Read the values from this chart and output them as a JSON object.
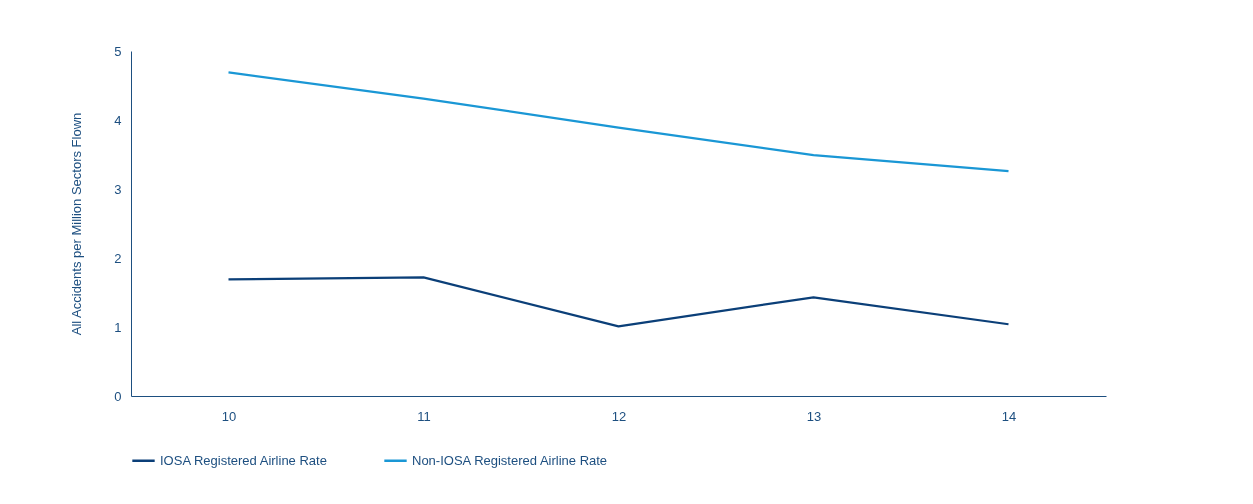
{
  "chart_data": {
    "type": "line",
    "ylabel": "All Accidents per Million Sectors Flown",
    "categories": [
      "10",
      "11",
      "12",
      "13",
      "14"
    ],
    "series": [
      {
        "name": "IOSA Registered Airline Rate",
        "color": "#0b3f78",
        "values": [
          1.69,
          1.72,
          1.01,
          1.43,
          1.04
        ]
      },
      {
        "name": "Non-IOSA Registered Airline Rate",
        "color": "#1a97d5",
        "values": [
          4.69,
          4.31,
          3.89,
          3.49,
          3.26
        ]
      }
    ],
    "ylim": [
      0,
      5
    ],
    "yticks": [
      0,
      1,
      2,
      3,
      4,
      5
    ],
    "grid": false,
    "legend": "bottom left",
    "marker": "none",
    "line_style": "solid"
  }
}
